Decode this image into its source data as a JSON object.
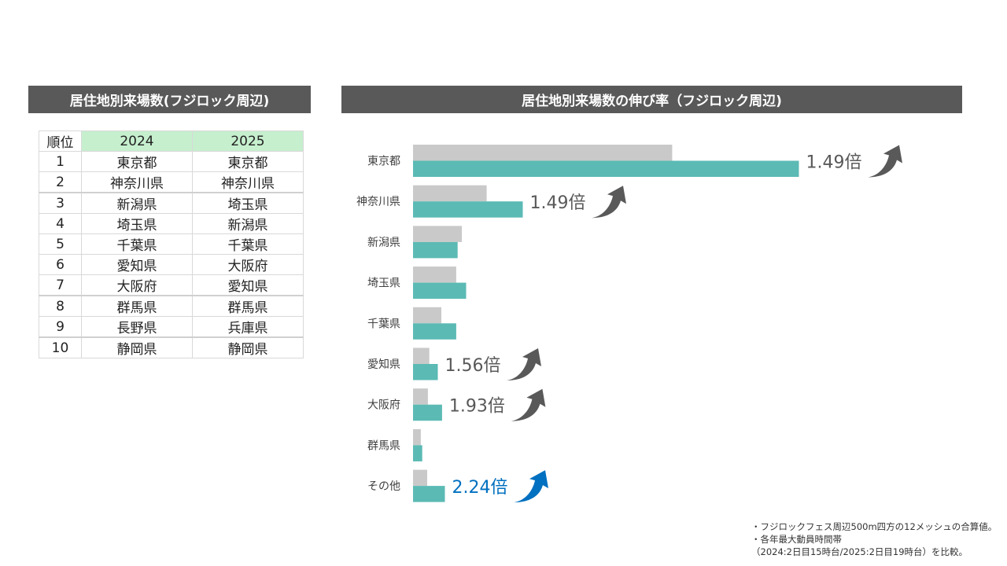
{
  "left_title": "居住地別来場数(フジロック周辺)",
  "right_title": "居住地別来場数の伸び率（フジロック周辺)",
  "table": {
    "headers": [
      "順位",
      "2024",
      "2025"
    ],
    "rows": [
      [
        "1",
        "東京都",
        "東京都"
      ],
      [
        "2",
        "神奈川県",
        "神奈川県"
      ],
      [
        "3",
        "新潟県",
        "埼玉県"
      ],
      [
        "4",
        "埼玉県",
        "新潟県"
      ],
      [
        "5",
        "千葉県",
        "千葉県"
      ],
      [
        "6",
        "愛知県",
        "大阪府"
      ],
      [
        "7",
        "大阪府",
        "愛知県"
      ],
      [
        "8",
        "群馬県",
        "群馬県"
      ],
      [
        "9",
        "長野県",
        "兵庫県"
      ],
      [
        "10",
        "静岡県",
        "静岡県"
      ]
    ]
  },
  "chart_data": {
    "type": "bar",
    "orientation": "horizontal",
    "categories": [
      "東京都",
      "神奈川県",
      "新潟県",
      "埼玉県",
      "千葉県",
      "愛知県",
      "大阪府",
      "群馬県",
      "その他"
    ],
    "series": [
      {
        "values": [
          366,
          104,
          69,
          61,
          40,
          23,
          21,
          11,
          20
        ],
        "color": "#c9c9c9"
      },
      {
        "values": [
          545,
          155,
          63,
          75,
          61,
          35,
          41,
          13,
          45
        ],
        "color": "#5bbab4"
      }
    ],
    "annotations": [
      {
        "category": "東京都",
        "text": "1.49倍",
        "color": "#595959"
      },
      {
        "category": "神奈川県",
        "text": "1.49倍",
        "color": "#595959"
      },
      {
        "category": "愛知県",
        "text": "1.56倍",
        "color": "#595959"
      },
      {
        "category": "大阪府",
        "text": "1.93倍",
        "color": "#595959"
      },
      {
        "category": "その他",
        "text": "2.24倍",
        "color": "#0070c0"
      }
    ],
    "xlim": [
      0,
      600
    ],
    "grid": false,
    "legend": "none"
  },
  "notes": [
    "・フジロックフェス周辺500m四方の12メッシュの合算値。",
    "・各年最大動員時間帯",
    "（2024:2日目15時台/2025:2日目19時台）を比較。"
  ]
}
